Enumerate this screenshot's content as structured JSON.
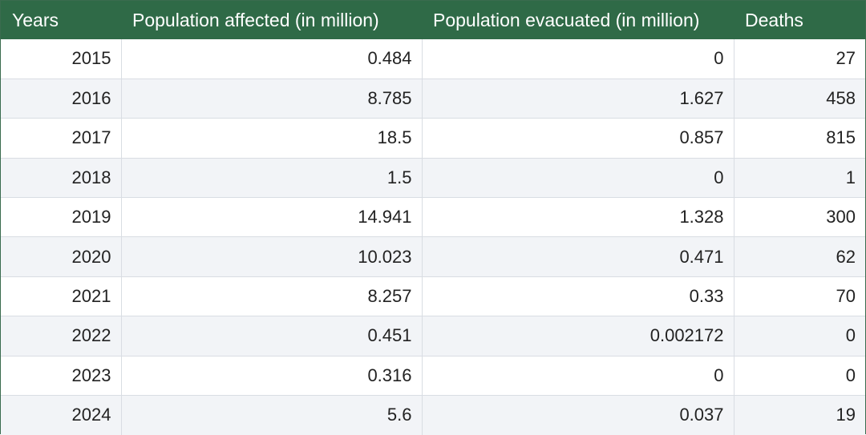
{
  "table": {
    "headers": [
      "Years",
      "Population affected (in million)",
      "Population evacuated (in million)",
      "Deaths"
    ],
    "rows": [
      [
        "2015",
        "0.484",
        "0",
        "27"
      ],
      [
        "2016",
        "8.785",
        "1.627",
        "458"
      ],
      [
        "2017",
        "18.5",
        "0.857",
        "815"
      ],
      [
        "2018",
        "1.5",
        "0",
        "1"
      ],
      [
        "2019",
        "14.941",
        "1.328",
        "300"
      ],
      [
        "2020",
        "10.023",
        "0.471",
        "62"
      ],
      [
        "2021",
        "8.257",
        "0.33",
        "70"
      ],
      [
        "2022",
        "0.451",
        "0.002172",
        "0"
      ],
      [
        "2023",
        "0.316",
        "0",
        "0"
      ],
      [
        "2024",
        "5.6",
        "0.037",
        "19"
      ]
    ]
  },
  "colors": {
    "header_bg": "#2f6a47",
    "header_text": "#ffffff",
    "row_alt_bg": "#f2f4f7",
    "grid_line": "#d9dde3"
  }
}
